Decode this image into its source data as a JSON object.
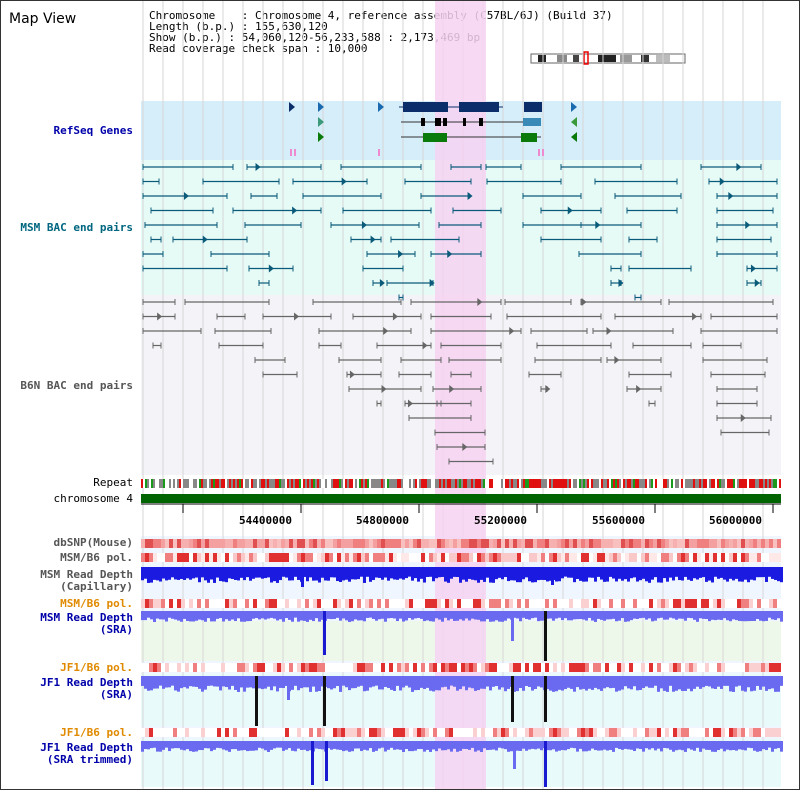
{
  "title": "Map View",
  "header": {
    "lines": [
      "Chromosome    : Chromosome 4, reference assembly (C57BL/6J) (Build 37)",
      "Length (b.p.) : 155,630,120",
      "Show (b.p.) : 54,060,120-56,233,588 : 2,173,469 bp",
      "Read coverage check span : 10,000"
    ]
  },
  "tracks": {
    "refseq": "RefSeq Genes",
    "msm_bac": "MSM BAC end pairs",
    "b6n_bac": "B6N BAC end pairs",
    "repeat": "Repeat",
    "chromosome": "chromosome 4",
    "dbsnp": "dbSNP(Mouse)",
    "msm_pol": "MSM/B6 pol.",
    "msm_depth_cap_1": "MSM Read Depth",
    "msm_depth_cap_2": "(Capillary)",
    "msm_pol2": "MSM/B6 pol.",
    "msm_depth_sra_1": "MSM Read Depth",
    "msm_depth_sra_2": "(SRA)",
    "jf1_pol": "JF1/B6 pol.",
    "jf1_depth_sra_1": "JF1 Read Depth",
    "jf1_depth_sra_2": "(SRA)",
    "jf1_pol2": "JF1/B6 pol.",
    "jf1_depth_trim_1": "JF1 Read Depth",
    "jf1_depth_trim_2": "(SRA trimmed)"
  },
  "axis": {
    "ticks": [
      "54400000",
      "54800000",
      "55200000",
      "55600000",
      "56000000"
    ]
  },
  "colors": {
    "highlight": "#f6d2f2",
    "refseq_bg": "#d6eef9",
    "bac_bg": "#e6faf6",
    "chrom": "#006400",
    "depth_blue": "#1a1ae0"
  }
}
